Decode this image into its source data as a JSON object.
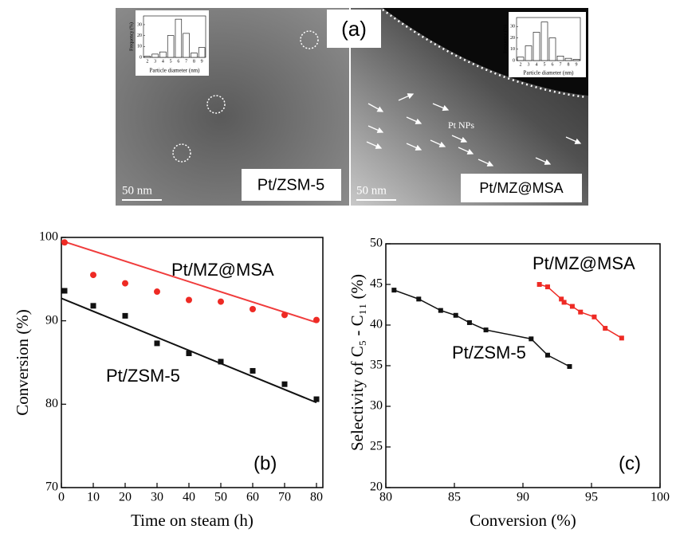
{
  "panel_a": {
    "label": "(a)",
    "left_sample": "Pt/ZSM-5",
    "right_sample": "Pt/MZ@MSA",
    "scale_bars": [
      "50 nm",
      "50 nm"
    ],
    "pt_label": "Pt NPs"
  },
  "chart_data": [
    {
      "type": "bar",
      "ylabel": "Frequency (%)",
      "xlabel": "Particle diameter (nm)",
      "categories": [
        "2",
        "3",
        "4",
        "5",
        "6",
        "7",
        "8",
        "9"
      ],
      "values": [
        1,
        3,
        5,
        20,
        35,
        22,
        4,
        9
      ],
      "color": "#ffffff",
      "ylim": [
        0,
        38
      ],
      "yticks": [
        0,
        10,
        20,
        30
      ]
    },
    {
      "type": "bar",
      "ylabel": "Frequency (%)",
      "xlabel": "Particle diameter (nm)",
      "categories": [
        "2",
        "3",
        "4",
        "5",
        "6",
        "7",
        "8",
        "9"
      ],
      "values": [
        3,
        13,
        25,
        34,
        20,
        4,
        2,
        1
      ],
      "color": "#ffffff",
      "ylim": [
        0,
        38
      ],
      "yticks": [
        0,
        10,
        20,
        30
      ]
    },
    {
      "type": "scatter",
      "xlabel": "Time on steam (h)",
      "ylabel": "Conversion (%)",
      "annotation": "(b)",
      "xlim": [
        0,
        82
      ],
      "xticks": [
        0,
        10,
        20,
        30,
        40,
        50,
        60,
        70,
        80
      ],
      "ylim": [
        70,
        100
      ],
      "yticks": [
        70,
        80,
        90,
        100
      ],
      "series": [
        {
          "name": "Pt/MZ@MSA",
          "color": "#ee2a24",
          "marker": "circle",
          "x": [
            1,
            10,
            20,
            30,
            40,
            50,
            60,
            70,
            80
          ],
          "values": [
            99.4,
            95.5,
            94.5,
            93.5,
            92.5,
            92.3,
            91.4,
            90.7,
            90.1
          ]
        },
        {
          "name": "Pt/ZSM-5",
          "color": "#111111",
          "marker": "square",
          "x": [
            1,
            10,
            20,
            30,
            40,
            50,
            60,
            70,
            80
          ],
          "values": [
            93.6,
            91.8,
            90.6,
            87.3,
            86.1,
            85.1,
            84.0,
            82.4,
            80.6
          ]
        }
      ],
      "fits": [
        {
          "color": "#f03c3c",
          "x": [
            0,
            80
          ],
          "values": [
            99.6,
            89.8
          ]
        },
        {
          "color": "#111111",
          "x": [
            0,
            80
          ],
          "values": [
            92.7,
            80.2
          ]
        }
      ]
    },
    {
      "type": "line",
      "xlabel": "Conversion (%)",
      "ylabel": "Selectivity of C₅ - C₁₁ (%)",
      "annotation": "(c)",
      "xlim": [
        80,
        100
      ],
      "xticks": [
        80,
        85,
        90,
        95,
        100
      ],
      "ylim": [
        20,
        50
      ],
      "yticks": [
        20,
        25,
        30,
        35,
        40,
        45,
        50
      ],
      "series": [
        {
          "name": "Pt/MZ@MSA",
          "color": "#ee2a24",
          "marker": "square",
          "x": [
            91.2,
            91.8,
            92.8,
            93.0,
            93.6,
            94.2,
            95.2,
            96.0,
            97.2
          ],
          "values": [
            45.0,
            44.7,
            43.2,
            42.8,
            42.3,
            41.6,
            41.0,
            39.6,
            38.4
          ]
        },
        {
          "name": "Pt/ZSM-5",
          "color": "#111111",
          "marker": "square",
          "x": [
            80.6,
            82.4,
            84.0,
            85.1,
            86.1,
            87.3,
            90.6,
            91.8,
            93.4
          ],
          "values": [
            44.3,
            43.2,
            41.8,
            41.2,
            40.3,
            39.4,
            38.3,
            36.3,
            34.9
          ]
        }
      ]
    }
  ]
}
